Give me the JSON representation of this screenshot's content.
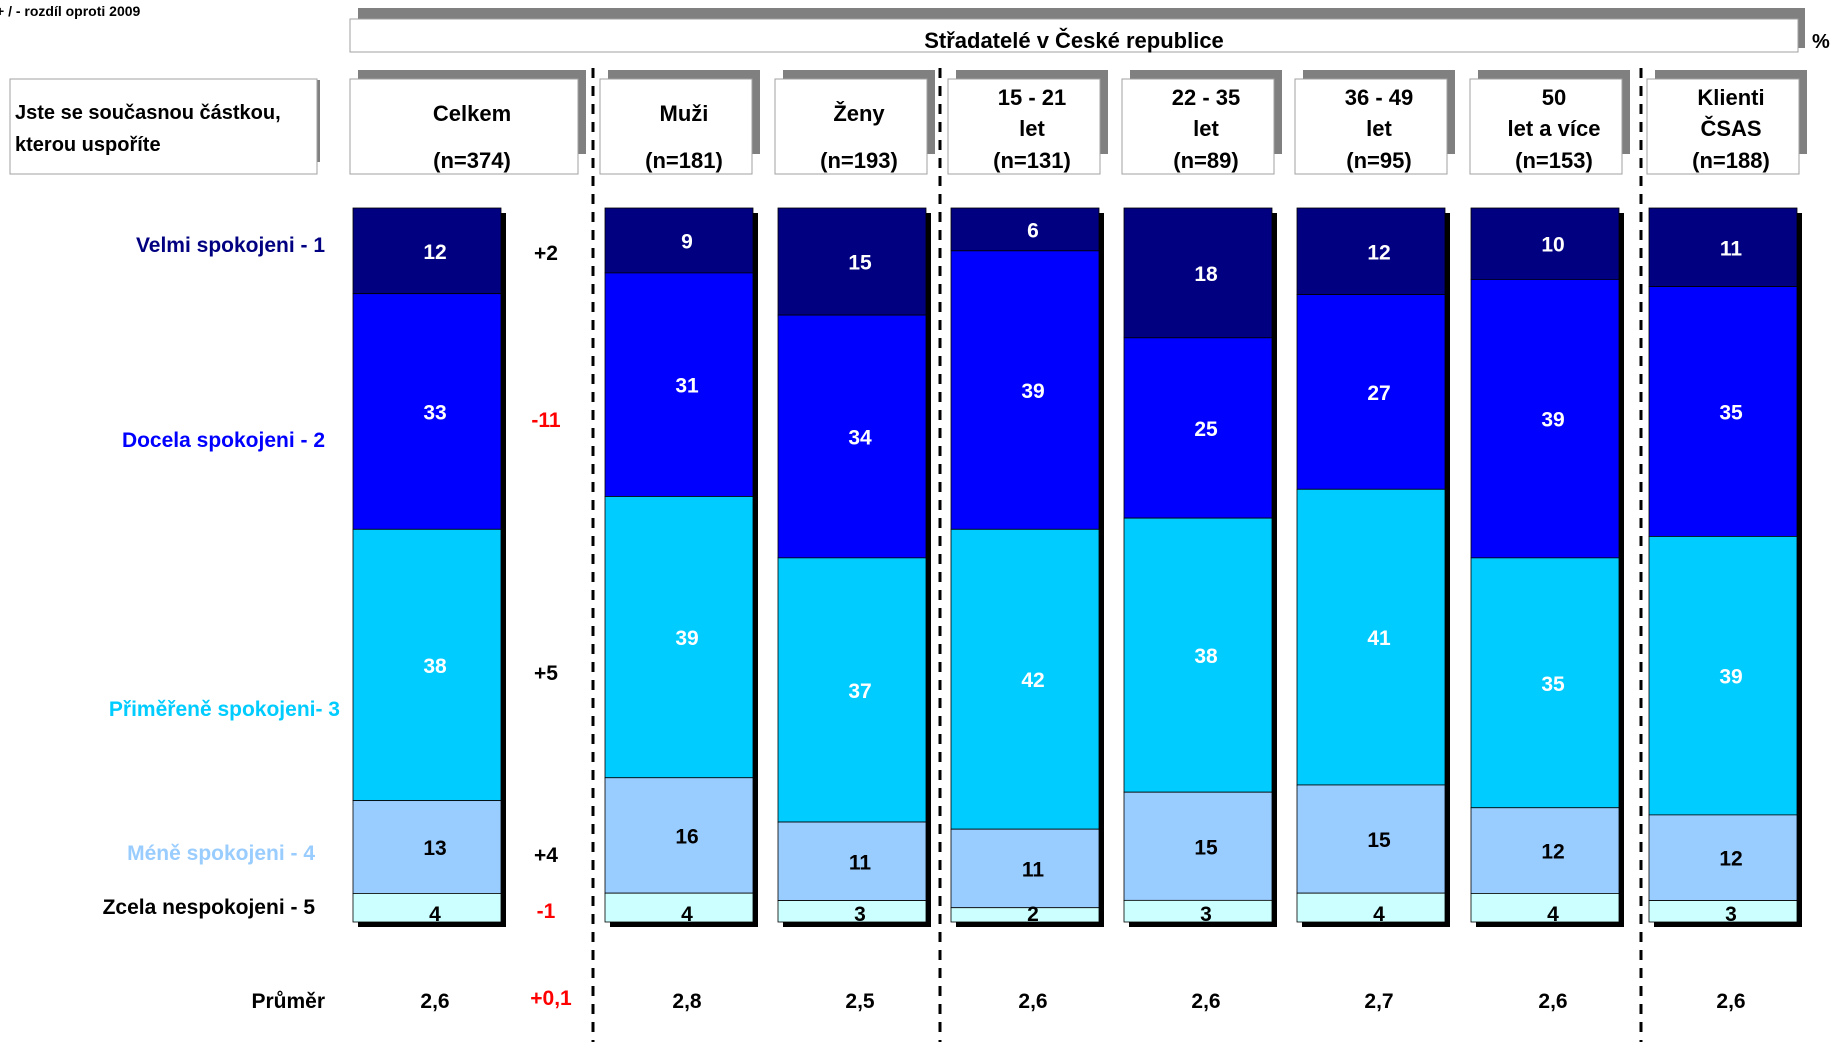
{
  "note": "+ / - rozdíl oproti 2009",
  "unit": "%",
  "header": {
    "title": "Střadatelé v České republice"
  },
  "question": [
    "Jste se současnou částkou,",
    "kterou uspoříte"
  ],
  "colors": {
    "cat1": "#000080",
    "cat2": "#0000ff",
    "cat3": "#00ccff",
    "cat4": "#99ccff",
    "cat5": "#ccffff",
    "diff_positive": "#000000",
    "diff_negative": "#ff0000"
  },
  "chart_data": {
    "type": "bar",
    "stacked": true,
    "categories": [
      {
        "label": [
          "Celkem"
        ],
        "n": "(n=374)"
      },
      {
        "label": [
          "Muži"
        ],
        "n": "(n=181)"
      },
      {
        "label": [
          "Ženy"
        ],
        "n": "(n=193)"
      },
      {
        "label": [
          "15 - 21",
          "let"
        ],
        "n": "(n=131)"
      },
      {
        "label": [
          "22 - 35",
          "let"
        ],
        "n": "(n=89)"
      },
      {
        "label": [
          "36 - 49",
          "let"
        ],
        "n": "(n=95)"
      },
      {
        "label": [
          "50",
          "let a více"
        ],
        "n": "(n=153)"
      },
      {
        "label": [
          "Klienti",
          "ČSAS"
        ],
        "n": "(n=188)"
      }
    ],
    "series": [
      {
        "name": "Velmi spokojeni - 1",
        "values": [
          12,
          9,
          15,
          6,
          18,
          12,
          10,
          11
        ]
      },
      {
        "name": "Docela spokojeni - 2",
        "values": [
          33,
          31,
          34,
          39,
          25,
          27,
          39,
          35
        ]
      },
      {
        "name": "Přiměřeně spokojeni- 3",
        "values": [
          38,
          39,
          37,
          42,
          38,
          41,
          35,
          39
        ]
      },
      {
        "name": "Méně spokojeni - 4",
        "values": [
          13,
          16,
          11,
          11,
          15,
          15,
          12,
          12
        ]
      },
      {
        "name": "Zcela nespokojeni - 5",
        "values": [
          4,
          4,
          3,
          2,
          3,
          4,
          4,
          3
        ]
      }
    ],
    "differences": [
      "+2",
      "-11",
      "+5",
      "+4",
      "-1"
    ],
    "mean": {
      "label": "Průměr",
      "values": [
        "2,6",
        "2,8",
        "2,5",
        "2,6",
        "2,6",
        "2,7",
        "2,6",
        "2,6"
      ],
      "difference": "+0,1"
    }
  }
}
